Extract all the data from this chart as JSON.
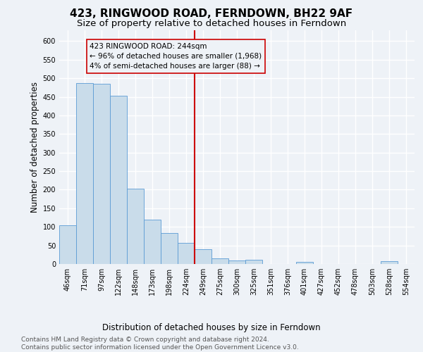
{
  "title": "423, RINGWOOD ROAD, FERNDOWN, BH22 9AF",
  "subtitle": "Size of property relative to detached houses in Ferndown",
  "xlabel": "Distribution of detached houses by size in Ferndown",
  "ylabel": "Number of detached properties",
  "bar_labels": [
    "46sqm",
    "71sqm",
    "97sqm",
    "122sqm",
    "148sqm",
    "173sqm",
    "198sqm",
    "224sqm",
    "249sqm",
    "275sqm",
    "300sqm",
    "325sqm",
    "351sqm",
    "376sqm",
    "401sqm",
    "427sqm",
    "452sqm",
    "478sqm",
    "503sqm",
    "528sqm",
    "554sqm"
  ],
  "bar_values": [
    105,
    487,
    485,
    453,
    202,
    120,
    83,
    57,
    40,
    15,
    10,
    11,
    0,
    0,
    5,
    0,
    0,
    0,
    0,
    7,
    0
  ],
  "bar_color": "#c9dcea",
  "bar_edge_color": "#5b9bd5",
  "vline_index": 8,
  "vline_color": "#cc0000",
  "annotation_title": "423 RINGWOOD ROAD: 244sqm",
  "annotation_line1": "← 96% of detached houses are smaller (1,968)",
  "annotation_line2": "4% of semi-detached houses are larger (88) →",
  "annotation_box_edgecolor": "#cc0000",
  "ylim": [
    0,
    630
  ],
  "yticks": [
    0,
    50,
    100,
    150,
    200,
    250,
    300,
    350,
    400,
    450,
    500,
    550,
    600
  ],
  "footer_line1": "Contains HM Land Registry data © Crown copyright and database right 2024.",
  "footer_line2": "Contains public sector information licensed under the Open Government Licence v3.0.",
  "background_color": "#eef2f7",
  "grid_color": "#ffffff",
  "title_fontsize": 11,
  "subtitle_fontsize": 9.5,
  "axis_label_fontsize": 8.5,
  "tick_fontsize": 7,
  "annotation_fontsize": 7.5,
  "footer_fontsize": 6.5
}
